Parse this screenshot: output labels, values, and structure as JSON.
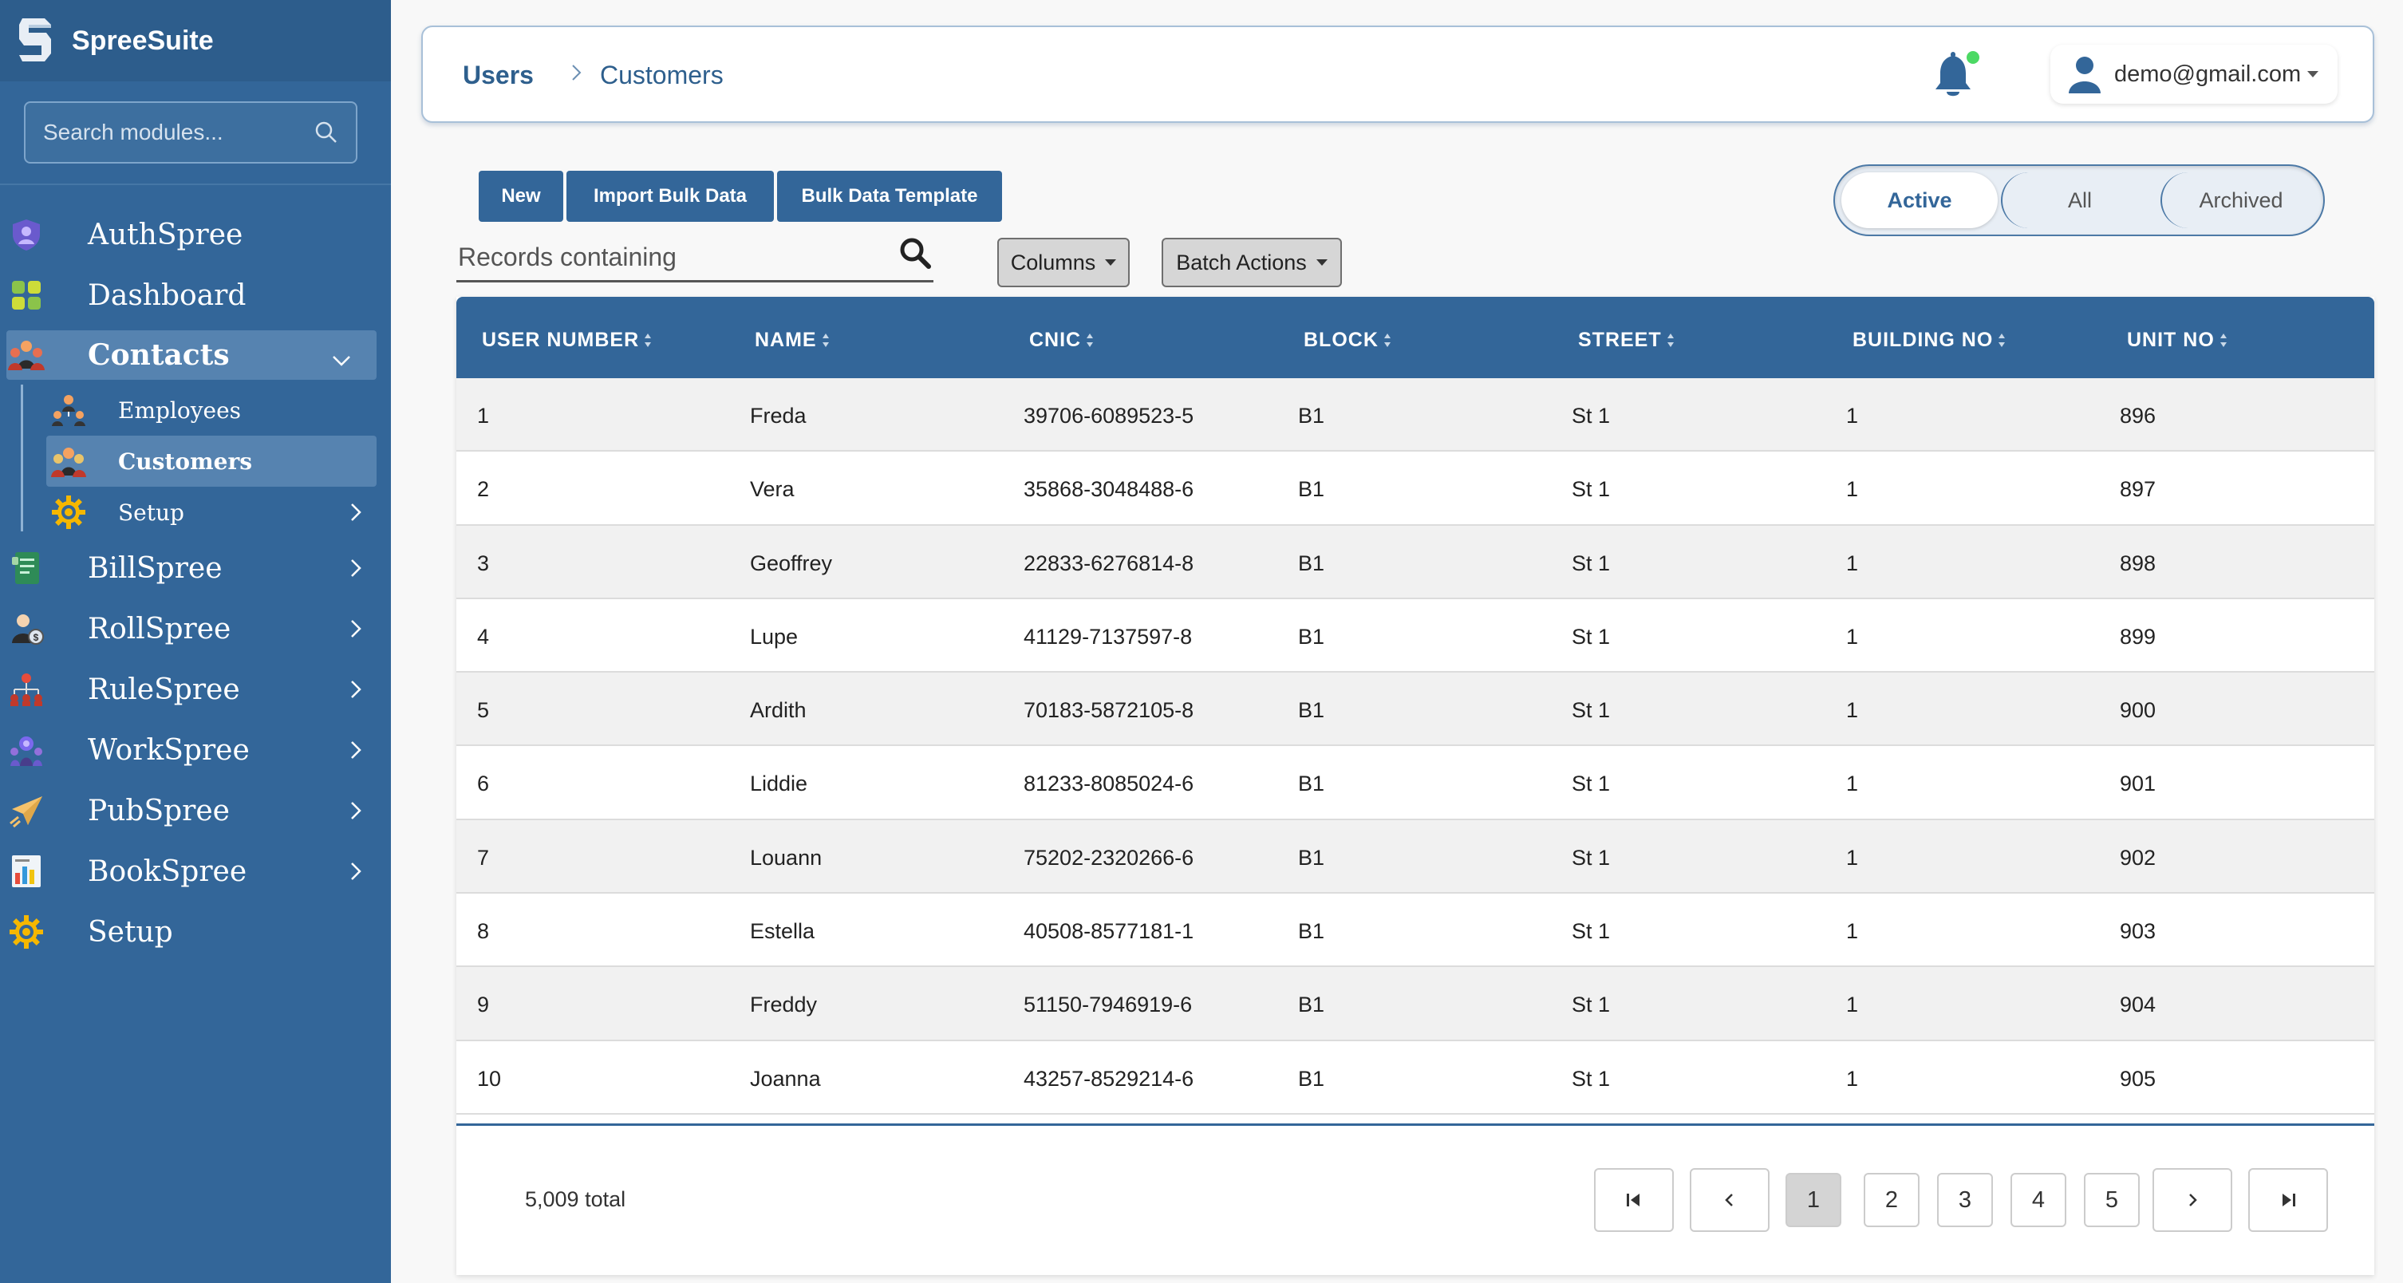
{
  "app": {
    "name": "SpreeSuite"
  },
  "sidebar": {
    "search_placeholder": "Search modules...",
    "items": [
      {
        "label": "AuthSpree",
        "icon": "shield-user-icon"
      },
      {
        "label": "Dashboard",
        "icon": "dashboard-icon"
      },
      {
        "label": "Contacts",
        "icon": "contacts-icon",
        "expanded": true
      },
      {
        "label": "BillSpree",
        "icon": "bill-icon"
      },
      {
        "label": "RollSpree",
        "icon": "payroll-icon"
      },
      {
        "label": "RuleSpree",
        "icon": "org-chart-icon"
      },
      {
        "label": "WorkSpree",
        "icon": "team-icon"
      },
      {
        "label": "PubSpree",
        "icon": "paper-plane-icon"
      },
      {
        "label": "BookSpree",
        "icon": "report-icon"
      },
      {
        "label": "Setup",
        "icon": "gear-icon"
      }
    ],
    "contacts_children": [
      {
        "label": "Employees",
        "icon": "employees-icon"
      },
      {
        "label": "Customers",
        "icon": "customers-icon",
        "active": true
      },
      {
        "label": "Setup",
        "icon": "gear-icon"
      }
    ]
  },
  "header": {
    "breadcrumb": [
      "Users",
      "Customers"
    ],
    "user_email": "demo@gmail.com",
    "notification_dot_color": "#4cd964"
  },
  "toolbar": {
    "new_label": "New",
    "import_label": "Import Bulk Data",
    "template_label": "Bulk Data Template",
    "search_placeholder": "Records containing",
    "columns_label": "Columns",
    "batch_label": "Batch Actions",
    "filter": {
      "active": "Active",
      "all": "All",
      "archived": "Archived",
      "selected": "Active"
    }
  },
  "table": {
    "columns": [
      "USER NUMBER",
      "NAME",
      "CNIC",
      "BLOCK",
      "STREET",
      "BUILDING NO",
      "UNIT NO"
    ],
    "rows": [
      [
        "1",
        "Freda",
        "39706-6089523-5",
        "B1",
        "St 1",
        "1",
        "896"
      ],
      [
        "2",
        "Vera",
        "35868-3048488-6",
        "B1",
        "St 1",
        "1",
        "897"
      ],
      [
        "3",
        "Geoffrey",
        "22833-6276814-8",
        "B1",
        "St 1",
        "1",
        "898"
      ],
      [
        "4",
        "Lupe",
        "41129-7137597-8",
        "B1",
        "St 1",
        "1",
        "899"
      ],
      [
        "5",
        "Ardith",
        "70183-5872105-8",
        "B1",
        "St 1",
        "1",
        "900"
      ],
      [
        "6",
        "Liddie",
        "81233-8085024-6",
        "B1",
        "St 1",
        "1",
        "901"
      ],
      [
        "7",
        "Louann",
        "75202-2320266-6",
        "B1",
        "St 1",
        "1",
        "902"
      ],
      [
        "8",
        "Estella",
        "40508-8577181-1",
        "B1",
        "St 1",
        "1",
        "903"
      ],
      [
        "9",
        "Freddy",
        "51150-7946919-6",
        "B1",
        "St 1",
        "1",
        "904"
      ],
      [
        "10",
        "Joanna",
        "43257-8529214-6",
        "B1",
        "St 1",
        "1",
        "905"
      ]
    ],
    "total_label": "5,009 total"
  },
  "pagination": {
    "pages": [
      "1",
      "2",
      "3",
      "4",
      "5"
    ],
    "current": "1"
  },
  "colors": {
    "primary": "#336699",
    "sidebar_bg": "#336699",
    "sidebar_active": "#5683b0"
  }
}
